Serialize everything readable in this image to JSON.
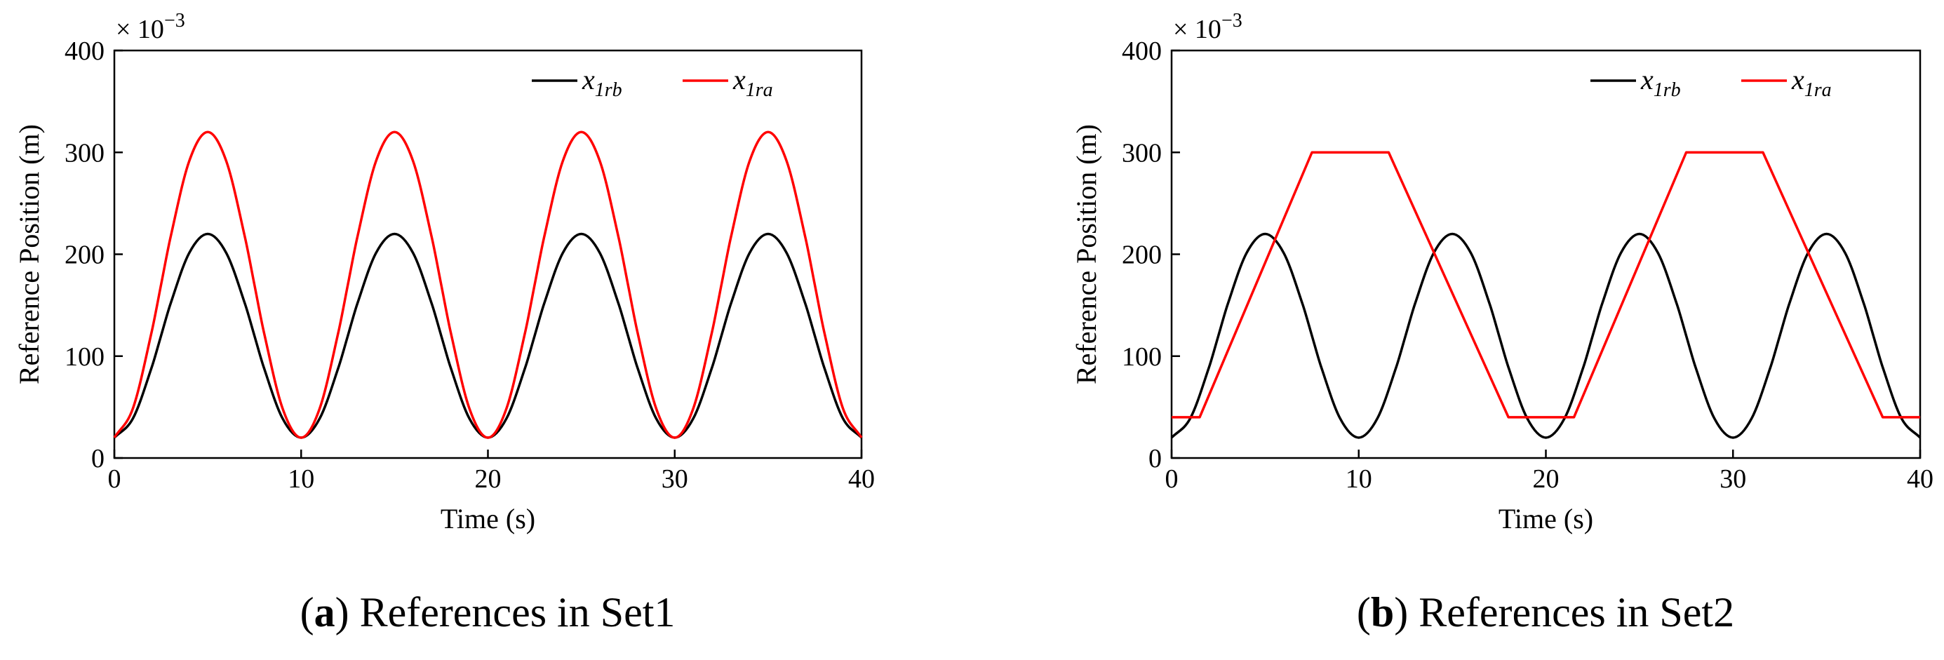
{
  "chart_data": [
    {
      "type": "line",
      "caption_letter": "a",
      "caption_text": "References in Set1",
      "xlabel": "Time (s)",
      "ylabel": "Reference Position (m)",
      "scale_base": "× 10",
      "scale_exponent": "−3",
      "xlim": [
        0,
        40
      ],
      "ylim": [
        0,
        400
      ],
      "xticks": [
        0,
        10,
        20,
        30,
        40
      ],
      "yticks": [
        0,
        100,
        200,
        300,
        400
      ],
      "legend_position": "top-right",
      "series": [
        {
          "name": "x1rb",
          "label_main": "x",
          "label_sub": "1rb",
          "color": "#000000",
          "x": [
            0,
            1,
            2,
            2.5,
            3,
            4,
            5,
            6,
            7,
            7.5,
            8,
            9,
            10,
            11,
            12,
            12.5,
            13,
            14,
            15,
            16,
            17,
            17.5,
            18,
            19,
            20,
            21,
            22,
            22.5,
            23,
            24,
            25,
            26,
            27,
            27.5,
            28,
            29,
            30,
            31,
            32,
            32.5,
            33,
            34,
            35,
            36,
            37,
            37.5,
            38,
            39,
            40
          ],
          "y": [
            20,
            39,
            89,
            120,
            151,
            201,
            220,
            201,
            151,
            120,
            89,
            39,
            20,
            39,
            89,
            120,
            151,
            201,
            220,
            201,
            151,
            120,
            89,
            39,
            20,
            39,
            89,
            120,
            151,
            201,
            220,
            201,
            151,
            120,
            89,
            39,
            20,
            39,
            89,
            120,
            151,
            201,
            220,
            201,
            151,
            120,
            89,
            39,
            20
          ]
        },
        {
          "name": "x1ra",
          "label_main": "x",
          "label_sub": "1ra",
          "color": "#ff0000",
          "x": [
            0,
            1,
            2,
            2.5,
            3,
            4,
            5,
            6,
            7,
            7.5,
            8,
            9,
            10,
            11,
            12,
            12.5,
            13,
            14,
            15,
            16,
            17,
            17.5,
            18,
            19,
            20,
            21,
            22,
            22.5,
            23,
            24,
            25,
            26,
            27,
            27.5,
            28,
            29,
            30,
            31,
            32,
            32.5,
            33,
            34,
            35,
            36,
            37,
            37.5,
            38,
            39,
            40
          ],
          "y": [
            20,
            49,
            124,
            170,
            216,
            291,
            320,
            291,
            216,
            170,
            124,
            49,
            20,
            49,
            124,
            170,
            216,
            291,
            320,
            291,
            216,
            170,
            124,
            49,
            20,
            49,
            124,
            170,
            216,
            291,
            320,
            291,
            216,
            170,
            124,
            49,
            20,
            49,
            124,
            170,
            216,
            291,
            320,
            291,
            216,
            170,
            124,
            49,
            20
          ]
        }
      ]
    },
    {
      "type": "line",
      "caption_letter": "b",
      "caption_text": "References in Set2",
      "xlabel": "Time (s)",
      "ylabel": "Reference Position (m)",
      "scale_base": "× 10",
      "scale_exponent": "−3",
      "xlim": [
        0,
        40
      ],
      "ylim": [
        0,
        400
      ],
      "xticks": [
        0,
        10,
        20,
        30,
        40
      ],
      "yticks": [
        0,
        100,
        200,
        300,
        400
      ],
      "legend_position": "top-right",
      "series": [
        {
          "name": "x1rb",
          "label_main": "x",
          "label_sub": "1rb",
          "color": "#000000",
          "x": [
            0,
            1,
            2,
            2.5,
            3,
            4,
            5,
            6,
            7,
            7.5,
            8,
            9,
            10,
            11,
            12,
            12.5,
            13,
            14,
            15,
            16,
            17,
            17.5,
            18,
            19,
            20,
            21,
            22,
            22.5,
            23,
            24,
            25,
            26,
            27,
            27.5,
            28,
            29,
            30,
            31,
            32,
            32.5,
            33,
            34,
            35,
            36,
            37,
            37.5,
            38,
            39,
            40
          ],
          "y": [
            20,
            39,
            89,
            120,
            151,
            201,
            220,
            201,
            151,
            120,
            89,
            39,
            20,
            39,
            89,
            120,
            151,
            201,
            220,
            201,
            151,
            120,
            89,
            39,
            20,
            39,
            89,
            120,
            151,
            201,
            220,
            201,
            151,
            120,
            89,
            39,
            20,
            39,
            89,
            120,
            151,
            201,
            220,
            201,
            151,
            120,
            89,
            39,
            20
          ]
        },
        {
          "name": "x1ra",
          "label_main": "x",
          "label_sub": "1ra",
          "color": "#ff0000",
          "x": [
            0,
            1.5,
            7.5,
            11.6,
            18,
            21.5,
            27.5,
            31.6,
            38,
            40
          ],
          "y": [
            40,
            40,
            300,
            300,
            40,
            40,
            300,
            300,
            40,
            40
          ]
        }
      ]
    }
  ]
}
